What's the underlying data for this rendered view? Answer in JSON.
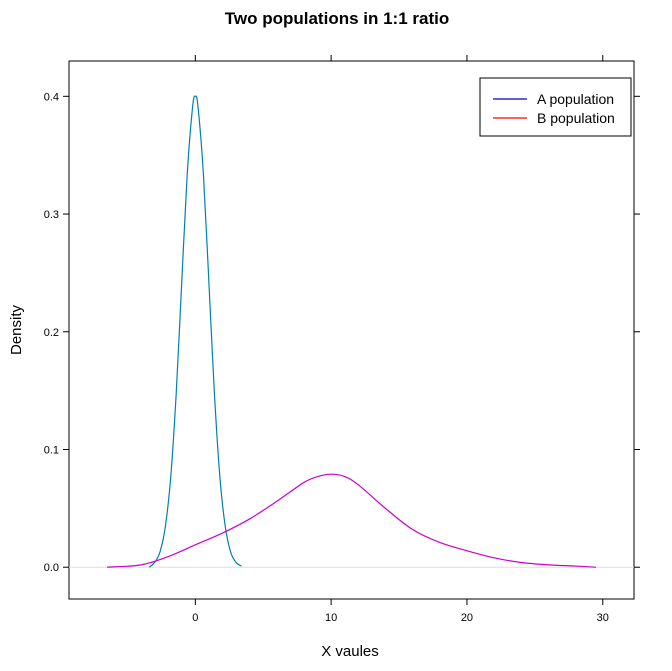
{
  "chart_data": {
    "type": "line",
    "title": "Two populations in 1:1 ratio",
    "xlabel": "X vaules",
    "ylabel": "Density",
    "xlim": [
      -9.3,
      32.3
    ],
    "ylim": [
      -0.027,
      0.43
    ],
    "xticks": [
      0,
      10,
      20,
      30
    ],
    "yticks": [
      0.0,
      0.1,
      0.2,
      0.3,
      0.4
    ],
    "xtick_labels": [
      "0",
      "10",
      "20",
      "30"
    ],
    "ytick_labels": [
      "0.0",
      "0.1",
      "0.2",
      "0.3",
      "0.4"
    ],
    "grid": false,
    "baseline_y": 0,
    "baseline_color": "#dddddd",
    "legend": {
      "position": "top-right",
      "entries": [
        {
          "label": "A population",
          "color": "#0000cc"
        },
        {
          "label": "B population",
          "color": "#ff0000"
        }
      ]
    },
    "series": [
      {
        "name": "A population",
        "color": "#0080b0",
        "x": [
          -3.4,
          -3.0,
          -2.6,
          -2.2,
          -1.8,
          -1.4,
          -1.0,
          -0.6,
          -0.2,
          0.0,
          0.2,
          0.6,
          1.0,
          1.4,
          1.8,
          2.2,
          2.6,
          3.0,
          3.4
        ],
        "y": [
          0.0,
          0.004,
          0.013,
          0.035,
          0.078,
          0.149,
          0.242,
          0.333,
          0.391,
          0.4,
          0.391,
          0.333,
          0.242,
          0.149,
          0.078,
          0.035,
          0.013,
          0.004,
          0.001
        ]
      },
      {
        "name": "B population",
        "color": "#cc00cc",
        "x": [
          -6.5,
          -4.0,
          -2.0,
          0.0,
          2.0,
          4.0,
          6.0,
          8.0,
          9.0,
          10.0,
          11.0,
          12.0,
          14.0,
          16.0,
          18.0,
          20.0,
          22.0,
          24.0,
          26.0,
          28.0,
          29.5
        ],
        "y": [
          0.0,
          0.002,
          0.009,
          0.019,
          0.029,
          0.041,
          0.056,
          0.072,
          0.077,
          0.079,
          0.077,
          0.07,
          0.05,
          0.032,
          0.021,
          0.014,
          0.008,
          0.004,
          0.002,
          0.001,
          0.0
        ]
      }
    ]
  }
}
